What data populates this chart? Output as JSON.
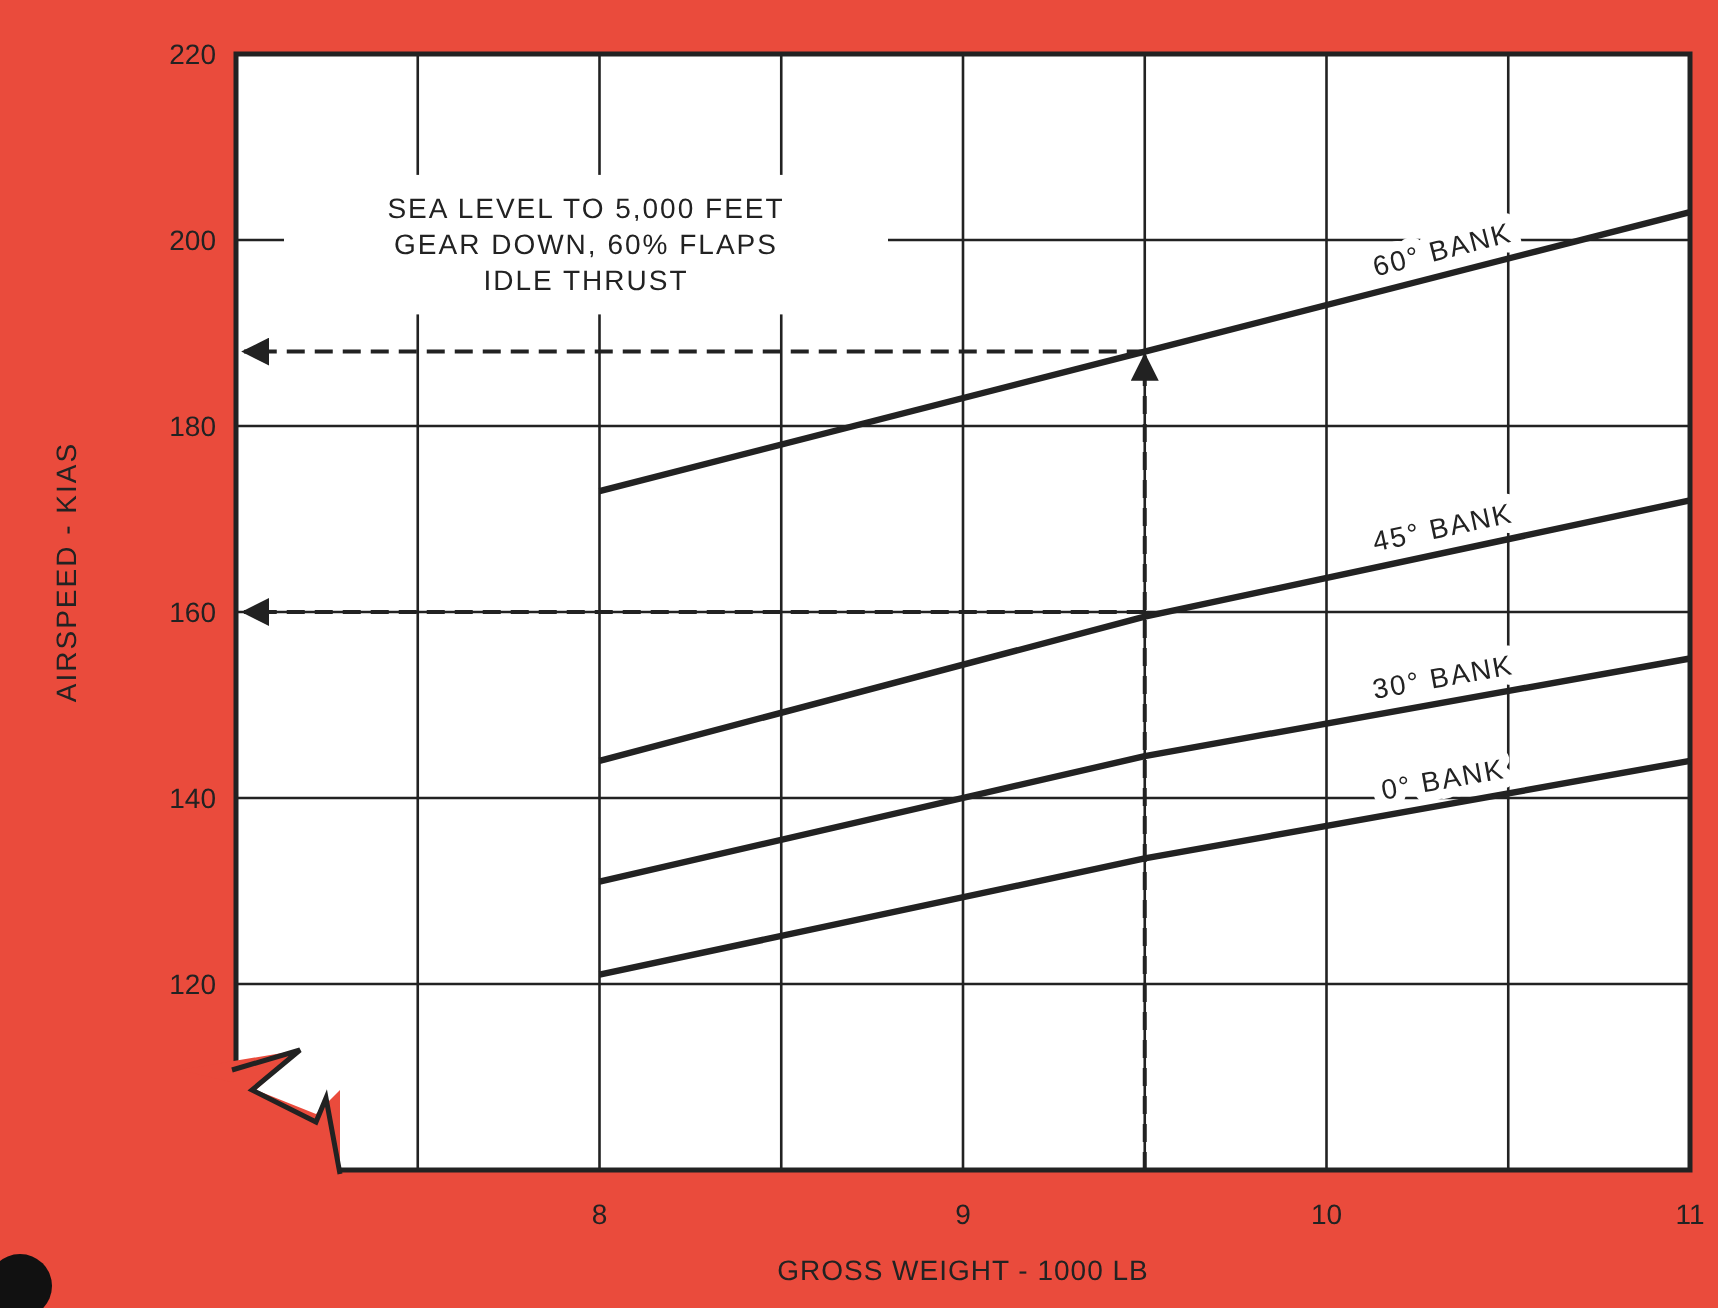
{
  "chart_data": {
    "type": "line",
    "xlabel": "GROSS WEIGHT - 1000 LB",
    "ylabel": "AIRSPEED - KIAS",
    "xlim": [
      7,
      11
    ],
    "ylim": [
      100,
      220
    ],
    "xticks": [
      {
        "value": 7.5,
        "label": null
      },
      8,
      {
        "value": 8.5,
        "label": null
      },
      9,
      {
        "value": 9.5,
        "label": null
      },
      10,
      {
        "value": 10.5,
        "label": null
      },
      11
    ],
    "yticks": [
      120,
      140,
      160,
      180,
      200,
      220
    ],
    "grid": true,
    "marker": "none",
    "line_style": "solid",
    "x": [
      8,
      9.5,
      11
    ],
    "series": [
      {
        "name": "60° BANK",
        "color": "#222222",
        "values": [
          173,
          188,
          203
        ]
      },
      {
        "name": "45° BANK",
        "color": "#222222",
        "values": [
          144,
          159.5,
          172
        ]
      },
      {
        "name": "30° BANK",
        "color": "#222222",
        "values": [
          131,
          144.5,
          155
        ]
      },
      {
        "name": "0° BANK",
        "color": "#222222",
        "values": [
          121,
          133.5,
          144
        ]
      }
    ],
    "ref_lines": [
      {
        "axis": "x",
        "value": 9.5,
        "line_style": "dashed",
        "color": "#222222"
      },
      {
        "axis": "y",
        "value": 188,
        "line_style": "dashed",
        "color": "#222222"
      },
      {
        "axis": "y",
        "value": 160,
        "line_style": "dashed",
        "color": "#222222"
      }
    ],
    "annotations": [
      "SEA LEVEL TO 5,000 FEET\nGEAR DOWN, 60% FLAPS\nIDLE THRUST"
    ]
  }
}
